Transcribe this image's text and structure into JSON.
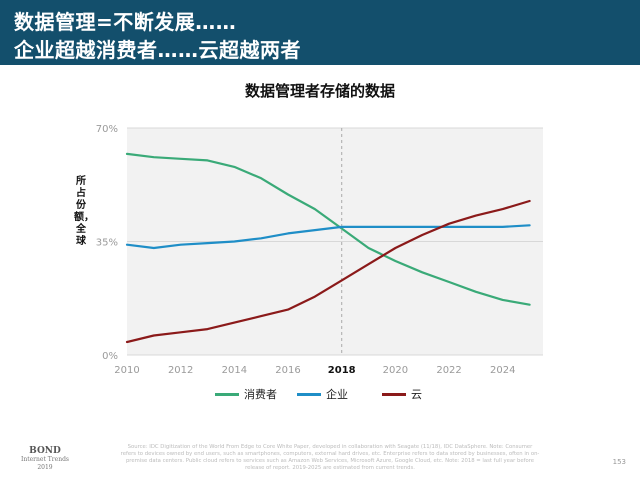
{
  "header": {
    "line1": "数据管理=不断发展……",
    "line2": "企业超越消费者……云超越两者"
  },
  "chart_data": {
    "type": "line",
    "title": "数据管理者存储的数据",
    "ylabel": "所占份额，全球",
    "xlabel": "",
    "x": [
      2010,
      2011,
      2012,
      2013,
      2014,
      2015,
      2016,
      2017,
      2018,
      2019,
      2020,
      2021,
      2022,
      2023,
      2024,
      2025
    ],
    "xlim": [
      2010,
      2025.5
    ],
    "ylim": [
      0,
      70
    ],
    "x_ticks": [
      "2010",
      "2012",
      "2014",
      "2016",
      "2018",
      "2020",
      "2022",
      "2024"
    ],
    "y_ticks": [
      "0%",
      "35%",
      "70%"
    ],
    "highlight_x": "2018",
    "grid": true,
    "legend_position": "bottom",
    "series": [
      {
        "name": "消费者",
        "color": "#3aaa78",
        "values": [
          62,
          61,
          60.5,
          60,
          58,
          54.5,
          49.5,
          45,
          39,
          33,
          29,
          25.5,
          22.5,
          19.5,
          17,
          15.5
        ]
      },
      {
        "name": "企业",
        "color": "#1f8ec7",
        "values": [
          34,
          33,
          34,
          34.5,
          35,
          36,
          37.5,
          38.5,
          39.5,
          39.5,
          39.5,
          39.5,
          39.5,
          39.5,
          39.5,
          40
        ]
      },
      {
        "name": "云",
        "color": "#8b1a1a",
        "values": [
          4,
          6,
          7,
          8,
          10,
          12,
          14,
          18,
          23,
          28,
          33,
          37,
          40.5,
          43,
          45,
          47.5
        ]
      }
    ]
  },
  "footer": {
    "bond_line1": "BOND",
    "bond_line2": "Internet Trends",
    "bond_line3": "2019",
    "source": "Source: IDC Digitization of the World From Edge to Core White Paper, developed in collaboration with Seagate (11/18), IDC DataSphere. Note: Consumer refers to devices owned by end users, such as smartphones, computers, external hard drives, etc. Enterprise refers to data stored by businesses, often in on-premise data centers. Public cloud refers to services such as Amazon Web Services, Microsoft Azure, Google Cloud, etc. Note: 2018 = last full year before release of report. 2019-2025 are estimated from current trends.",
    "page_number": "153"
  }
}
